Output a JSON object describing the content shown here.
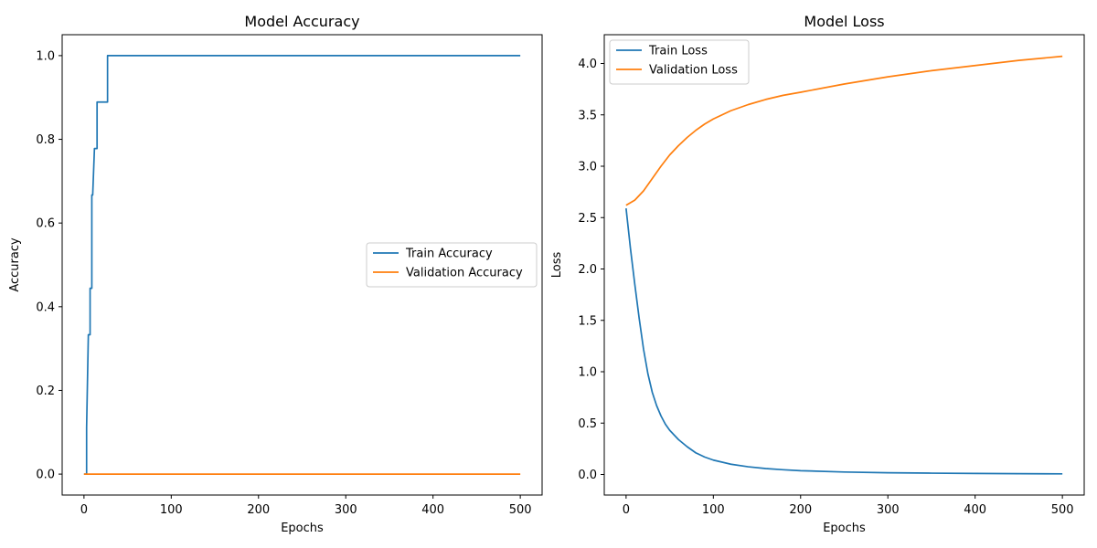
{
  "colors": {
    "train": "#1f77b4",
    "validation": "#ff7f0e"
  },
  "chart_data": [
    {
      "type": "line",
      "title": "Model Accuracy",
      "xlabel": "Epochs",
      "ylabel": "Accuracy",
      "xlim": [
        -25,
        525
      ],
      "ylim": [
        -0.05,
        1.05
      ],
      "xticks": [
        0,
        100,
        200,
        300,
        400,
        500
      ],
      "yticks": [
        0.0,
        0.2,
        0.4,
        0.6,
        0.8,
        1.0
      ],
      "ytick_decimals": 1,
      "legend_position": "center-right",
      "series": [
        {
          "name": "Train Accuracy",
          "color_key": "train",
          "x": [
            0,
            3,
            3,
            5,
            5,
            7,
            7,
            9,
            9,
            10,
            10,
            12,
            12,
            15,
            15,
            16,
            16,
            27,
            27,
            500
          ],
          "y": [
            0.0,
            0.0,
            0.111,
            0.333,
            0.333,
            0.333,
            0.444,
            0.444,
            0.667,
            0.667,
            0.667,
            0.778,
            0.778,
            0.778,
            0.889,
            0.889,
            0.889,
            0.889,
            1.0,
            1.0
          ]
        },
        {
          "name": "Validation Accuracy",
          "color_key": "validation",
          "x": [
            0,
            500
          ],
          "y": [
            0.0,
            0.0
          ]
        }
      ]
    },
    {
      "type": "line",
      "title": "Model Loss",
      "xlabel": "Epochs",
      "ylabel": "Loss",
      "xlim": [
        -25,
        525
      ],
      "ylim": [
        -0.2,
        4.28
      ],
      "xticks": [
        0,
        100,
        200,
        300,
        400,
        500
      ],
      "yticks": [
        0.0,
        0.5,
        1.0,
        1.5,
        2.0,
        2.5,
        3.0,
        3.5,
        4.0
      ],
      "ytick_decimals": 1,
      "legend_position": "upper-left",
      "series": [
        {
          "name": "Train Loss",
          "color_key": "train",
          "x": [
            0,
            5,
            10,
            15,
            20,
            25,
            30,
            35,
            40,
            45,
            50,
            60,
            70,
            80,
            90,
            100,
            120,
            140,
            160,
            180,
            200,
            250,
            300,
            350,
            400,
            450,
            500
          ],
          "y": [
            2.59,
            2.2,
            1.85,
            1.52,
            1.22,
            0.98,
            0.8,
            0.67,
            0.57,
            0.49,
            0.43,
            0.34,
            0.27,
            0.21,
            0.17,
            0.14,
            0.1,
            0.075,
            0.058,
            0.046,
            0.037,
            0.024,
            0.017,
            0.013,
            0.01,
            0.008,
            0.006
          ]
        },
        {
          "name": "Validation Loss",
          "color_key": "validation",
          "x": [
            0,
            10,
            20,
            30,
            40,
            50,
            60,
            70,
            80,
            90,
            100,
            120,
            140,
            160,
            180,
            200,
            250,
            300,
            350,
            400,
            450,
            500
          ],
          "y": [
            2.62,
            2.67,
            2.76,
            2.88,
            3.0,
            3.11,
            3.2,
            3.28,
            3.35,
            3.41,
            3.46,
            3.54,
            3.6,
            3.65,
            3.69,
            3.72,
            3.8,
            3.87,
            3.93,
            3.98,
            4.03,
            4.07
          ]
        }
      ]
    }
  ]
}
